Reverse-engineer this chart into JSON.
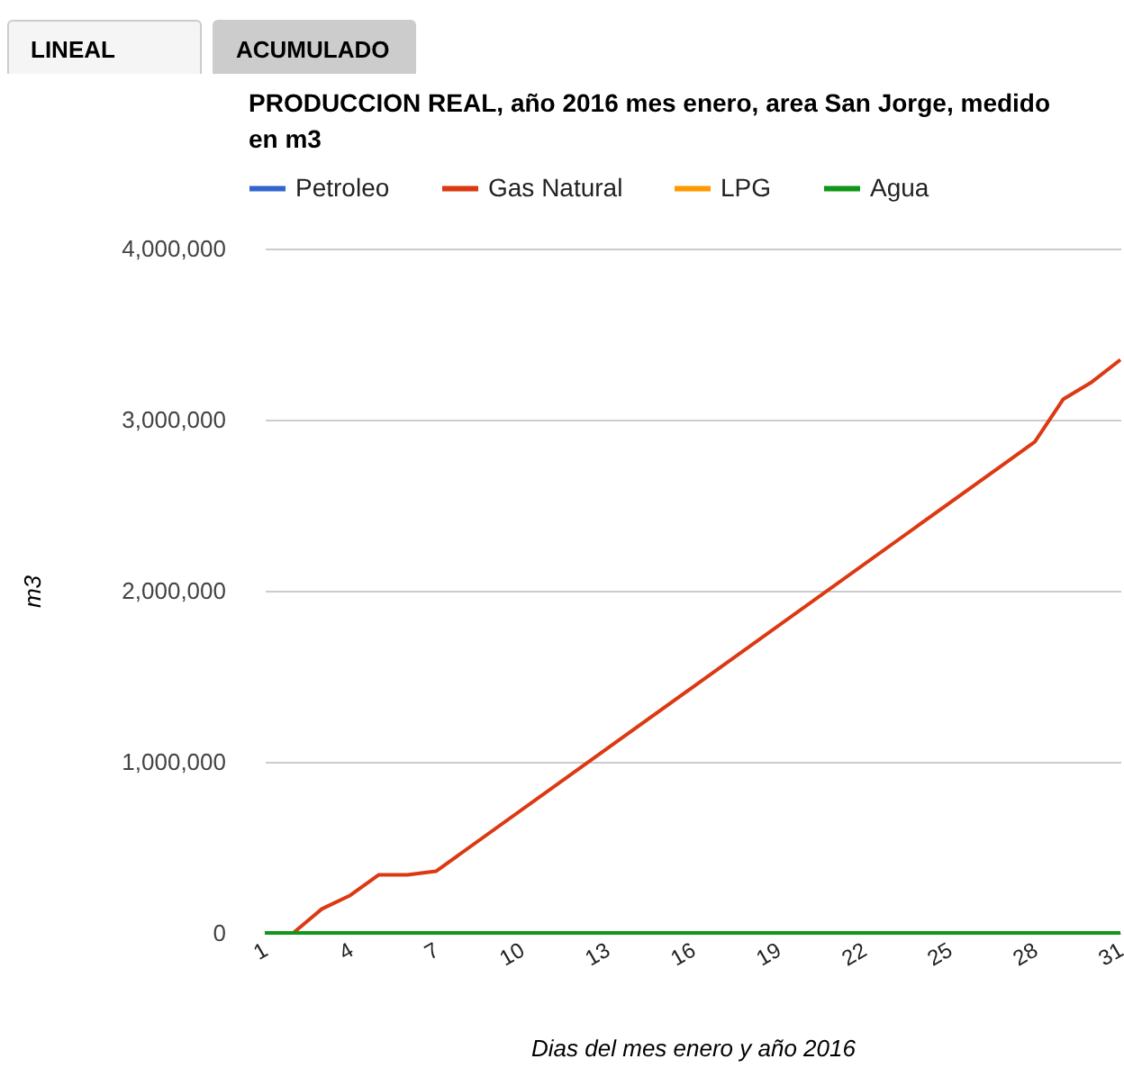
{
  "chart_data": {
    "type": "line",
    "title": "PRODUCCION REAL, año 2016 mes enero, area San Jorge, medido en m3",
    "annotations": [
      "LINEAL",
      "ACUMULADO"
    ],
    "xlabel": "Dias del mes enero y año 2016",
    "ylabel": "m3",
    "x": [
      1,
      2,
      3,
      4,
      5,
      6,
      7,
      28,
      29,
      30,
      31
    ],
    "series": [
      {
        "name": "Petroleo",
        "color": "#3366cc",
        "values": [
          null,
          null,
          null,
          null,
          null,
          null,
          null,
          null,
          null,
          null,
          null
        ]
      },
      {
        "name": "Gas Natural",
        "color": "#dc3912",
        "values": [
          0,
          0,
          140000,
          220000,
          340000,
          340000,
          360000,
          2870000,
          3120000,
          3220000,
          3350000
        ]
      },
      {
        "name": "LPG",
        "color": "#ff9900",
        "values": [
          null,
          null,
          null,
          null,
          null,
          null,
          null,
          null,
          null,
          null,
          null
        ]
      },
      {
        "name": "Agua",
        "color": "#109618",
        "values": [
          0,
          0,
          0,
          0,
          0,
          0,
          0,
          0,
          0,
          0,
          0
        ]
      }
    ],
    "xlim": [
      1,
      31
    ],
    "xticks": [
      1,
      4,
      7,
      10,
      13,
      16,
      19,
      22,
      25,
      28,
      31
    ],
    "ylim": [
      0,
      4000000
    ],
    "yticks": [
      0,
      {
        "value": 1000000,
        "label": "1,000,000"
      },
      {
        "value": 2000000,
        "label": "2,000,000"
      },
      {
        "value": 3000000,
        "label": "3,000,000"
      },
      {
        "value": 4000000,
        "label": "4,000,000"
      }
    ],
    "grid": "y",
    "legend": "top",
    "marker": "none",
    "line_style": "solid"
  }
}
